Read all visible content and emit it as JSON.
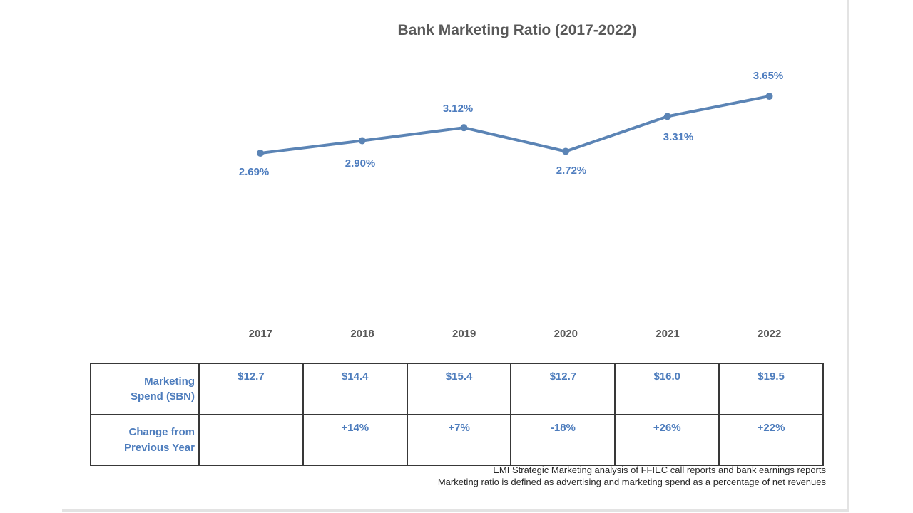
{
  "chart_data": {
    "type": "line",
    "title": "Bank Marketing Ratio (2017-2022)",
    "categories": [
      "2017",
      "2018",
      "2019",
      "2020",
      "2021",
      "2022"
    ],
    "series": [
      {
        "name": "Bank marketing ratio (%)",
        "values": [
          2.69,
          2.9,
          3.12,
          2.72,
          3.31,
          3.65
        ]
      }
    ],
    "points": [
      {
        "label": "2.69%",
        "value": 2.69,
        "label_position": "below-left"
      },
      {
        "label": "2.90%",
        "value": 2.9,
        "label_position": "below"
      },
      {
        "label": "3.12%",
        "value": 3.12,
        "label_position": "above"
      },
      {
        "label": "2.72%",
        "value": 2.72,
        "label_position": "below"
      },
      {
        "label": "3.31%",
        "value": 3.31,
        "label_position": "below-right"
      },
      {
        "label": "3.65%",
        "value": 3.65,
        "label_position": "above"
      }
    ],
    "xlabel": "",
    "ylabel": "",
    "y_axis": {
      "visible": false,
      "approx_range": [
        0,
        4.5
      ]
    },
    "grid": false,
    "legend": "none",
    "colors": {
      "line": "#5b84b5",
      "marker": "#5b84b5",
      "data_label": "#4e7dbf",
      "title": "#595959",
      "axis_line": "#d9d9d9"
    }
  },
  "table": {
    "rows": [
      {
        "label": "Marketing Spend ($BN)",
        "label_lines": [
          "Marketing",
          "Spend ($BN)"
        ],
        "values": [
          "$12.7",
          "$14.4",
          "$15.4",
          "$12.7",
          "$16.0",
          "$19.5"
        ]
      },
      {
        "label": "Change from Previous Year",
        "label_lines": [
          "Change from",
          "Previous Year"
        ],
        "values": [
          "",
          "+14%",
          "+7%",
          "-18%",
          "+26%",
          "+22%"
        ],
        "negative_value_index": 3
      }
    ],
    "colors": {
      "text": "#4e7dbd",
      "negative": "#d02028",
      "border": "#383838"
    }
  },
  "footer": {
    "line1": "EMI Strategic Marketing analysis of FFIEC call reports and bank earnings reports",
    "line2": "Marketing ratio is defined as advertising and marketing spend as a percentage of net revenues"
  }
}
